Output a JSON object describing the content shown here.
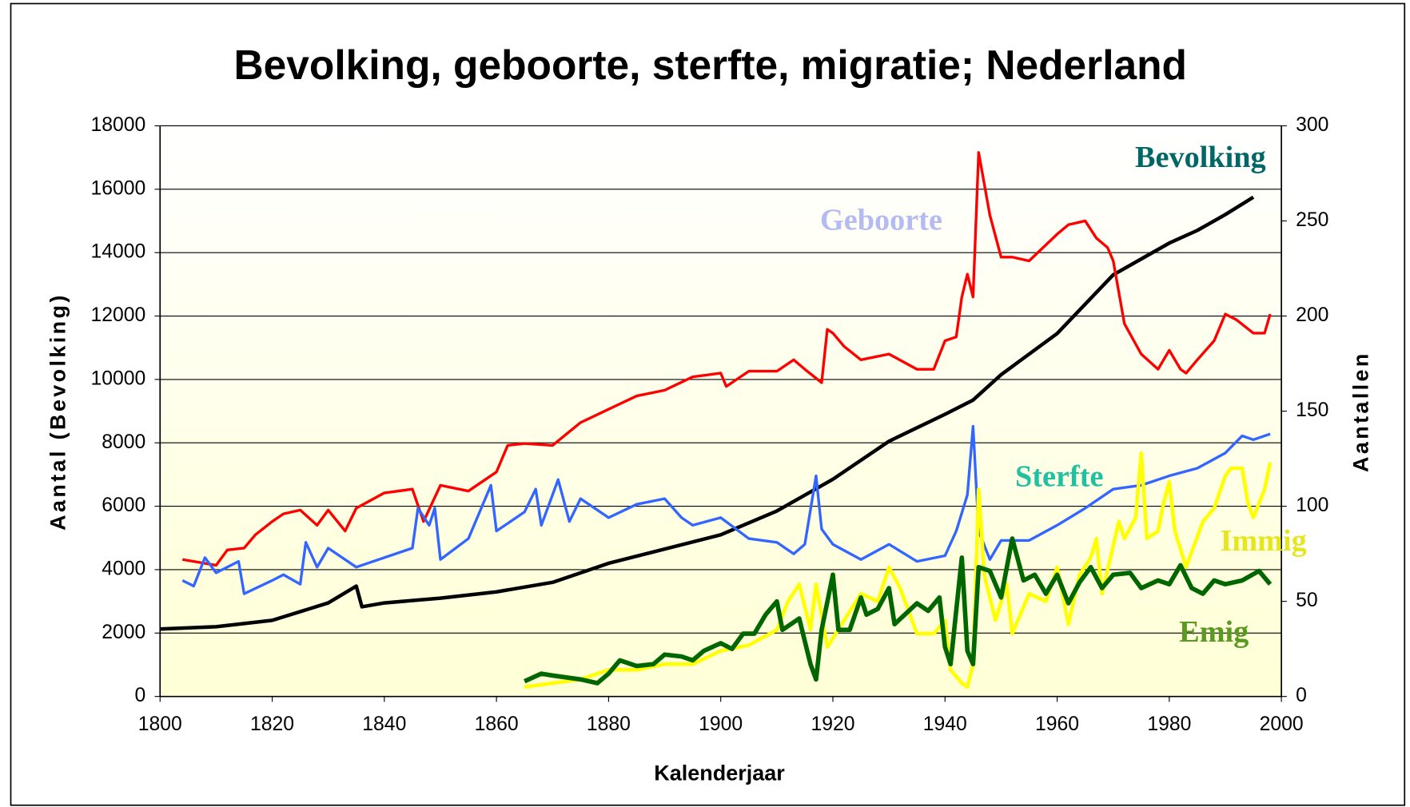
{
  "chart_data": {
    "type": "line",
    "title": "Bevolking, geboorte, sterfte, migratie; Nederland",
    "x_label": "Kalenderjaar",
    "y_label": "Aantal (Bevolking)",
    "y2_label": "Aantallen",
    "xlim": [
      1800,
      2000
    ],
    "xticks": [
      1800,
      1820,
      1840,
      1860,
      1880,
      1900,
      1920,
      1940,
      1960,
      1980,
      2000
    ],
    "ylim": [
      0,
      18000
    ],
    "yticks": [
      0,
      2000,
      4000,
      6000,
      8000,
      10000,
      12000,
      14000,
      16000,
      18000
    ],
    "y2lim": [
      0,
      300
    ],
    "y2ticks": [
      0,
      50,
      100,
      150,
      200,
      250,
      300
    ],
    "grid": true,
    "series": [
      {
        "name": "Bevolking",
        "color": "#000000",
        "label_color": "#006666",
        "axis": "y",
        "x": [
          1800,
          1810,
          1820,
          1830,
          1835,
          1836,
          1840,
          1850,
          1860,
          1870,
          1880,
          1890,
          1900,
          1910,
          1920,
          1930,
          1940,
          1945,
          1950,
          1960,
          1970,
          1975,
          1980,
          1985,
          1990,
          1995
        ],
        "values": [
          2126,
          2200,
          2400,
          2950,
          3480,
          2830,
          2950,
          3100,
          3300,
          3600,
          4200,
          4650,
          5100,
          5850,
          6850,
          8050,
          8900,
          9350,
          10150,
          11450,
          13300,
          13800,
          14300,
          14700,
          15200,
          15750
        ]
      },
      {
        "name": "Geboorte",
        "color": "#ff0000",
        "label_color": "#b4baf2",
        "axis": "y2",
        "x": [
          1804,
          1810,
          1812,
          1815,
          1817,
          1820,
          1822,
          1825,
          1828,
          1830,
          1833,
          1835,
          1840,
          1845,
          1847,
          1850,
          1855,
          1860,
          1862,
          1865,
          1870,
          1875,
          1880,
          1885,
          1890,
          1895,
          1900,
          1901,
          1905,
          1910,
          1913,
          1915,
          1918,
          1919,
          1920,
          1922,
          1925,
          1930,
          1935,
          1938,
          1940,
          1942,
          1943,
          1944,
          1945,
          1946,
          1948,
          1950,
          1952,
          1955,
          1960,
          1962,
          1965,
          1967,
          1969,
          1970,
          1972,
          1975,
          1978,
          1980,
          1982,
          1983,
          1985,
          1988,
          1990,
          1992,
          1995,
          1997,
          1998
        ],
        "values": [
          72,
          69,
          77,
          78,
          85,
          92,
          96,
          98,
          90,
          98,
          87,
          99,
          107,
          109,
          92,
          111,
          108,
          118,
          132,
          133,
          132,
          144,
          151,
          158,
          161,
          168,
          170,
          163,
          171,
          171,
          177,
          172,
          165,
          193,
          191,
          184,
          177,
          180,
          172,
          172,
          187,
          189,
          210,
          222,
          210,
          286,
          253,
          231,
          231,
          229,
          243,
          248,
          250,
          241,
          236,
          229,
          196,
          180,
          172,
          182,
          172,
          170,
          177,
          187,
          201,
          198,
          191,
          191,
          201
        ]
      },
      {
        "name": "Sterfte",
        "color": "#3366ff",
        "label_color": "#20c0a0",
        "axis": "y2",
        "x": [
          1804,
          1806,
          1808,
          1810,
          1814,
          1815,
          1820,
          1822,
          1825,
          1826,
          1828,
          1830,
          1835,
          1840,
          1845,
          1846,
          1848,
          1849,
          1850,
          1855,
          1857,
          1859,
          1860,
          1865,
          1867,
          1868,
          1871,
          1873,
          1875,
          1880,
          1885,
          1890,
          1893,
          1895,
          1900,
          1905,
          1910,
          1913,
          1915,
          1917,
          1918,
          1920,
          1925,
          1930,
          1935,
          1940,
          1942,
          1944,
          1945,
          1946,
          1948,
          1950,
          1955,
          1960,
          1965,
          1970,
          1975,
          1980,
          1985,
          1990,
          1993,
          1995,
          1998
        ],
        "values": [
          61,
          58,
          73,
          65,
          71,
          54,
          61,
          64,
          59,
          81,
          68,
          78,
          68,
          73,
          78,
          99,
          90,
          99,
          72,
          83,
          97,
          111,
          87,
          97,
          109,
          90,
          114,
          92,
          104,
          94,
          101,
          104,
          94,
          90,
          94,
          83,
          81,
          75,
          80,
          116,
          88,
          80,
          72,
          80,
          71,
          74,
          87,
          106,
          142,
          87,
          72,
          82,
          82,
          90,
          99,
          109,
          111,
          116,
          120,
          128,
          137,
          135,
          138
        ]
      },
      {
        "name": "Immig",
        "color": "#ffff00",
        "label_color": "#e6e61e",
        "axis": "y2",
        "x": [
          1865,
          1870,
          1875,
          1880,
          1885,
          1890,
          1895,
          1900,
          1905,
          1910,
          1912,
          1914,
          1916,
          1917,
          1919,
          1922,
          1925,
          1928,
          1930,
          1932,
          1935,
          1938,
          1940,
          1941,
          1943,
          1944,
          1945,
          1946,
          1947,
          1949,
          1951,
          1952,
          1955,
          1958,
          1960,
          1962,
          1964,
          1966,
          1967,
          1968,
          1971,
          1972,
          1974,
          1975,
          1976,
          1978,
          1979,
          1980,
          1981,
          1983,
          1986,
          1988,
          1990,
          1991,
          1993,
          1994,
          1995,
          1997,
          1998
        ],
        "values": [
          5,
          7,
          9,
          14,
          14,
          17,
          17,
          24,
          27,
          35,
          50,
          59,
          35,
          59,
          26,
          40,
          54,
          50,
          68,
          57,
          33,
          33,
          40,
          14,
          7,
          5,
          17,
          109,
          64,
          40,
          59,
          33,
          54,
          50,
          68,
          38,
          64,
          73,
          83,
          54,
          92,
          83,
          94,
          128,
          83,
          87,
          102,
          113,
          87,
          68,
          92,
          99,
          116,
          120,
          120,
          102,
          94,
          109,
          123
        ]
      },
      {
        "name": "Emig",
        "color": "#006600",
        "label_color": "#5a9a20",
        "axis": "y2",
        "x": [
          1865,
          1868,
          1870,
          1875,
          1878,
          1880,
          1882,
          1885,
          1888,
          1890,
          1893,
          1895,
          1897,
          1900,
          1902,
          1904,
          1906,
          1908,
          1910,
          1911,
          1914,
          1916,
          1917,
          1918,
          1920,
          1921,
          1923,
          1925,
          1926,
          1928,
          1930,
          1931,
          1935,
          1937,
          1939,
          1940,
          1941,
          1943,
          1944,
          1945,
          1946,
          1948,
          1950,
          1952,
          1954,
          1956,
          1958,
          1960,
          1962,
          1964,
          1966,
          1968,
          1970,
          1973,
          1975,
          1978,
          1980,
          1982,
          1984,
          1986,
          1988,
          1990,
          1993,
          1996,
          1998
        ],
        "values": [
          8,
          12,
          11,
          9,
          7,
          12,
          19,
          16,
          17,
          22,
          21,
          19,
          24,
          28,
          25,
          33,
          33,
          43,
          50,
          35,
          41,
          17,
          9,
          35,
          64,
          35,
          35,
          52,
          43,
          46,
          57,
          38,
          49,
          45,
          52,
          26,
          17,
          73,
          24,
          17,
          68,
          66,
          52,
          83,
          61,
          64,
          54,
          64,
          49,
          60,
          68,
          57,
          64,
          65,
          57,
          61,
          59,
          69,
          57,
          54,
          61,
          59,
          61,
          66,
          59
        ]
      }
    ]
  }
}
